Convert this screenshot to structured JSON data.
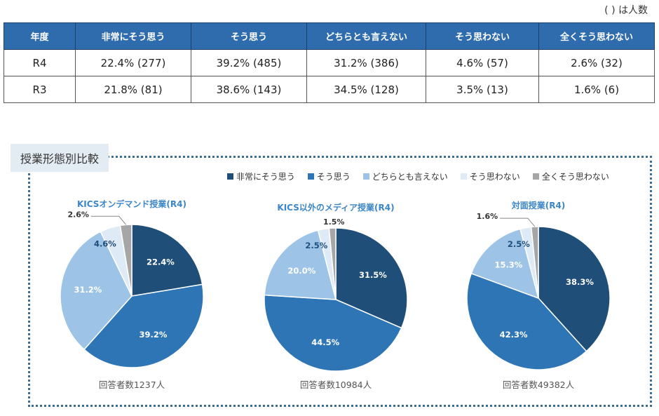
{
  "note": "( ) は人数",
  "table": {
    "headers": [
      "年度",
      "非常にそう思う",
      "そう思う",
      "どちらとも言えない",
      "そう思わない",
      "全くそう思わない"
    ],
    "rows": [
      [
        "R4",
        "22.4% (277)",
        "39.2% (485)",
        "31.2% (386)",
        "4.6% (57)",
        "2.6% (32)"
      ],
      [
        "R3",
        "21.8% (81)",
        "38.6% (143)",
        "34.5% (128)",
        "3.5% (13)",
        "1.6% (6)"
      ]
    ]
  },
  "panel_title": "授業形態別比較",
  "legend": [
    {
      "label": "非常にそう思う",
      "color": "#1f4e79"
    },
    {
      "label": "そう思う",
      "color": "#2e75b6"
    },
    {
      "label": "どちらとも言えない",
      "color": "#9dc3e6"
    },
    {
      "label": "そう思わない",
      "color": "#deebf7"
    },
    {
      "label": "全くそう思わない",
      "color": "#a6a6a6"
    }
  ],
  "chart_data": [
    {
      "type": "pie",
      "title": "KICSオンデマンド授業(R4)",
      "categories": [
        "非常にそう思う",
        "そう思う",
        "どちらとも言えない",
        "そう思わない",
        "全くそう思わない"
      ],
      "values": [
        22.4,
        39.2,
        31.2,
        4.6,
        2.6
      ],
      "labels": [
        "22.4%",
        "39.2%",
        "31.2%",
        "4.6%",
        "2.6%"
      ],
      "respondents": "回答者数1237人"
    },
    {
      "type": "pie",
      "title": "KICS以外のメディア授業(R4)",
      "categories": [
        "非常にそう思う",
        "そう思う",
        "どちらとも言えない",
        "そう思わない",
        "全くそう思わない"
      ],
      "values": [
        31.5,
        44.5,
        20.0,
        2.5,
        1.5
      ],
      "labels": [
        "31.5%",
        "44.5%",
        "20.0%",
        "2.5%",
        "1.5%"
      ],
      "respondents": "回答者数10984人"
    },
    {
      "type": "pie",
      "title": "対面授業(R4)",
      "categories": [
        "非常にそう思う",
        "そう思う",
        "どちらとも言えない",
        "そう思わない",
        "全くそう思わない"
      ],
      "values": [
        38.3,
        42.3,
        15.3,
        2.5,
        1.6
      ],
      "labels": [
        "38.3%",
        "42.3%",
        "15.3%",
        "2.5%",
        "1.6%"
      ],
      "respondents": "回答者数49382人"
    }
  ]
}
